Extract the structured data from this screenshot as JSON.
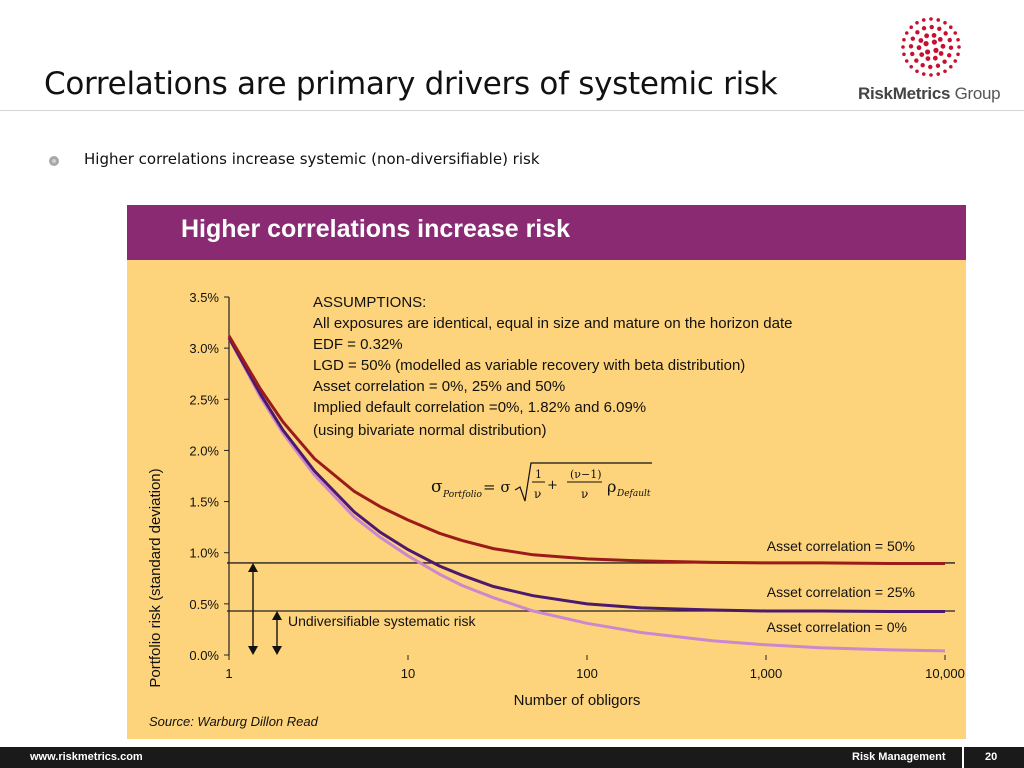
{
  "slide": {
    "title": "Correlations are primary drivers of systemic risk",
    "bullet": "Higher correlations increase systemic (non-diversifiable) risk"
  },
  "logo": {
    "brand": "RiskMetrics",
    "suffix": "Group",
    "color": "#c8102e"
  },
  "footer": {
    "url": "www.riskmetrics.com",
    "section": "Risk Management",
    "page": "20"
  },
  "colors": {
    "band": "#8a2a73",
    "panel": "#fdd47c"
  },
  "chart_data": {
    "type": "line",
    "title": "Higher correlations increase risk",
    "xlabel": "Number of obligors",
    "ylabel": "Portfolio risk (standard deviation)",
    "xscale": "log",
    "xlim": [
      1,
      10000
    ],
    "ylim": [
      0,
      3.5
    ],
    "x_ticks": [
      "1",
      "10",
      "100",
      "1,000",
      "10,000"
    ],
    "y_ticks": [
      "0.0%",
      "0.5%",
      "1.0%",
      "1.5%",
      "2.0%",
      "2.5%",
      "3.0%",
      "3.5%"
    ],
    "x": [
      1,
      1.5,
      2,
      3,
      5,
      7,
      10,
      15,
      20,
      30,
      50,
      100,
      200,
      500,
      1000,
      2000,
      5000,
      10000
    ],
    "series": [
      {
        "name": "Asset correlation = 50%",
        "label": "Asset correlation = 50%",
        "color": "#9b1b1b",
        "values": [
          3.12,
          2.6,
          2.28,
          1.92,
          1.6,
          1.45,
          1.32,
          1.19,
          1.12,
          1.04,
          0.98,
          0.94,
          0.92,
          0.905,
          0.9,
          0.9,
          0.895,
          0.895
        ]
      },
      {
        "name": "Asset correlation = 25%",
        "label": "Asset correlation = 25%",
        "color": "#4b1a6e",
        "values": [
          3.1,
          2.55,
          2.2,
          1.8,
          1.4,
          1.2,
          1.03,
          0.87,
          0.78,
          0.67,
          0.58,
          0.5,
          0.46,
          0.44,
          0.43,
          0.43,
          0.425,
          0.425
        ]
      },
      {
        "name": "Asset correlation = 0%",
        "label": "Asset correlation = 0%",
        "color": "#cc88cc",
        "values": [
          3.1,
          2.52,
          2.17,
          1.76,
          1.35,
          1.15,
          0.97,
          0.79,
          0.68,
          0.56,
          0.43,
          0.31,
          0.22,
          0.14,
          0.1,
          0.07,
          0.05,
          0.04
        ]
      }
    ],
    "reference_lines": [
      0.9,
      0.43
    ],
    "annotation_undiversifiable": "Undiversifiable systematic risk",
    "assumptions": {
      "heading": "ASSUMPTIONS:",
      "lines": [
        "All exposures are identical, equal in size and mature on the horizon date",
        "EDF = 0.32%",
        "LGD = 50% (modelled as variable recovery with beta distribution)",
        "Asset correlation = 0%, 25% and 50%",
        "Implied default correlation =0%, 1.82% and 6.09%",
        "(using bivariate normal distribution)"
      ]
    },
    "formula": {
      "sigma": "σ",
      "sub_portfolio": "Portfolio",
      "equals": "= σ",
      "one": "1",
      "nu": "ν",
      "plus": "+",
      "numerator": "(ν−1)",
      "rho": "ρ",
      "sub_default": "Default"
    },
    "source": "Source: Warburg Dillon Read"
  }
}
